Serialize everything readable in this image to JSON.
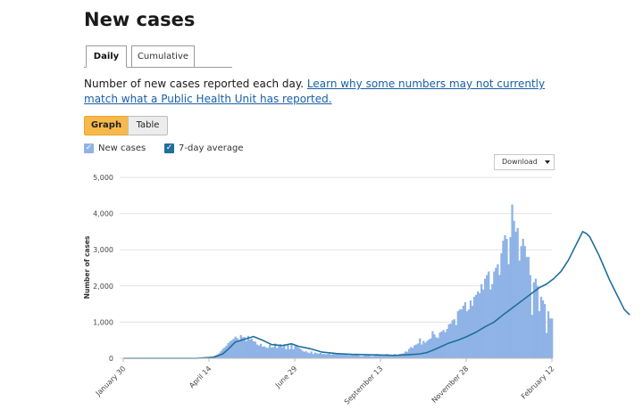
{
  "page": {
    "title": "New cases",
    "tabs": [
      "Daily",
      "Cumulative"
    ],
    "description": "Number of new cases reported each day. ",
    "link_text": "Learn why some numbers may not currently match what a Public Health Unit has reported.",
    "view_toggle": {
      "graph": "Graph",
      "table": "Table"
    },
    "legend": {
      "bars": "New cases",
      "line": "7-day average"
    },
    "download_label": "Download"
  },
  "colors": {
    "bars": "#8fb3e6",
    "line": "#1f6f9a",
    "accent": "#f8b94b",
    "link": "#1a5ea6"
  },
  "chart_data": {
    "type": "bar",
    "title": "",
    "xlabel": "",
    "ylabel": "Number of cases",
    "ylim": [
      0,
      5000
    ],
    "yticks": [
      0,
      1000,
      2000,
      3000,
      4000,
      5000
    ],
    "ytick_labels": [
      "0",
      "1,000",
      "2,000",
      "3,000",
      "4,000",
      "5,000"
    ],
    "xtick_labels": [
      "January 30",
      "April 14",
      "June 29",
      "September 13",
      "November 28",
      "February 12"
    ],
    "grid": true,
    "legend_position": "top-left",
    "x_start": "January 30",
    "x_end": "February 12",
    "series": [
      {
        "name": "New cases",
        "type": "bar",
        "values": [
          0,
          0,
          0,
          0,
          0,
          0,
          0,
          0,
          0,
          0,
          0,
          0,
          0,
          0,
          0,
          0,
          0,
          0,
          0,
          0,
          0,
          0,
          0,
          0,
          0,
          0,
          0,
          0,
          0,
          0,
          0,
          0,
          0,
          0,
          0,
          0,
          0,
          0,
          0,
          0,
          0,
          0,
          0,
          0,
          0,
          0,
          5,
          10,
          20,
          30,
          50,
          80,
          100,
          140,
          200,
          260,
          300,
          350,
          420,
          470,
          500,
          540,
          600,
          560,
          510,
          640,
          580,
          590,
          480,
          620,
          520,
          540,
          470,
          460,
          380,
          350,
          400,
          320,
          330,
          300,
          290,
          370,
          300,
          310,
          410,
          280,
          340,
          390,
          300,
          390,
          250,
          390,
          250,
          380,
          250,
          340,
          330,
          290,
          260,
          210,
          180,
          200,
          160,
          140,
          190,
          120,
          160,
          140,
          130,
          150,
          120,
          120,
          110,
          120,
          130,
          100,
          120,
          110,
          130,
          110,
          110,
          100,
          100,
          120,
          90,
          80,
          90,
          100,
          110,
          120,
          80,
          60,
          60,
          70,
          90,
          80,
          100,
          60,
          60,
          80,
          120,
          100,
          90,
          70,
          90,
          110,
          120,
          90,
          100,
          90,
          120,
          90,
          100,
          120,
          130,
          140,
          190,
          180,
          260,
          310,
          290,
          360,
          380,
          410,
          550,
          380,
          480,
          430,
          480,
          520,
          550,
          750,
          660,
          580,
          560,
          710,
          740,
          780,
          720,
          810,
          940,
          960,
          1050,
          1080,
          920,
          1300,
          1350,
          1350,
          1450,
          1550,
          1300,
          1350,
          1600,
          1450,
          1700,
          1750,
          1850,
          1800,
          2050,
          1900,
          2200,
          2300,
          2400,
          1900,
          2050,
          2400,
          2500,
          2600,
          2300,
          2900,
          3250,
          3400,
          3300,
          2600,
          3350,
          4250,
          3800,
          3500,
          3600,
          2700,
          3100,
          3300,
          3100,
          2800,
          2800,
          2300,
          1200,
          2100,
          2200,
          2000,
          1300,
          1700,
          1600,
          1500,
          700,
          1300,
          1100,
          1100
        ]
      },
      {
        "name": "7-day average",
        "type": "line",
        "points": [
          [
            0,
            0
          ],
          [
            40,
            0
          ],
          [
            50,
            30
          ],
          [
            55,
            120
          ],
          [
            58,
            250
          ],
          [
            62,
            450
          ],
          [
            68,
            540
          ],
          [
            72,
            600
          ],
          [
            77,
            500
          ],
          [
            82,
            380
          ],
          [
            88,
            350
          ],
          [
            93,
            400
          ],
          [
            97,
            330
          ],
          [
            103,
            270
          ],
          [
            110,
            170
          ],
          [
            118,
            130
          ],
          [
            126,
            110
          ],
          [
            134,
            100
          ],
          [
            142,
            90
          ],
          [
            150,
            80
          ],
          [
            158,
            100
          ],
          [
            164,
            120
          ],
          [
            168,
            160
          ],
          [
            172,
            240
          ],
          [
            176,
            330
          ],
          [
            180,
            420
          ],
          [
            185,
            500
          ],
          [
            190,
            600
          ],
          [
            195,
            720
          ],
          [
            200,
            870
          ],
          [
            205,
            1000
          ],
          [
            210,
            1200
          ],
          [
            214,
            1350
          ],
          [
            218,
            1500
          ],
          [
            222,
            1650
          ],
          [
            226,
            1800
          ],
          [
            230,
            1950
          ],
          [
            234,
            2050
          ],
          [
            238,
            2200
          ],
          [
            242,
            2400
          ],
          [
            246,
            2700
          ],
          [
            249,
            3000
          ],
          [
            252,
            3300
          ],
          [
            254,
            3500
          ],
          [
            256,
            3450
          ],
          [
            258,
            3350
          ],
          [
            260,
            3150
          ],
          [
            263,
            2850
          ],
          [
            266,
            2500
          ],
          [
            269,
            2150
          ],
          [
            272,
            1850
          ],
          [
            275,
            1550
          ],
          [
            277,
            1350
          ],
          [
            280,
            1200
          ]
        ]
      }
    ]
  }
}
